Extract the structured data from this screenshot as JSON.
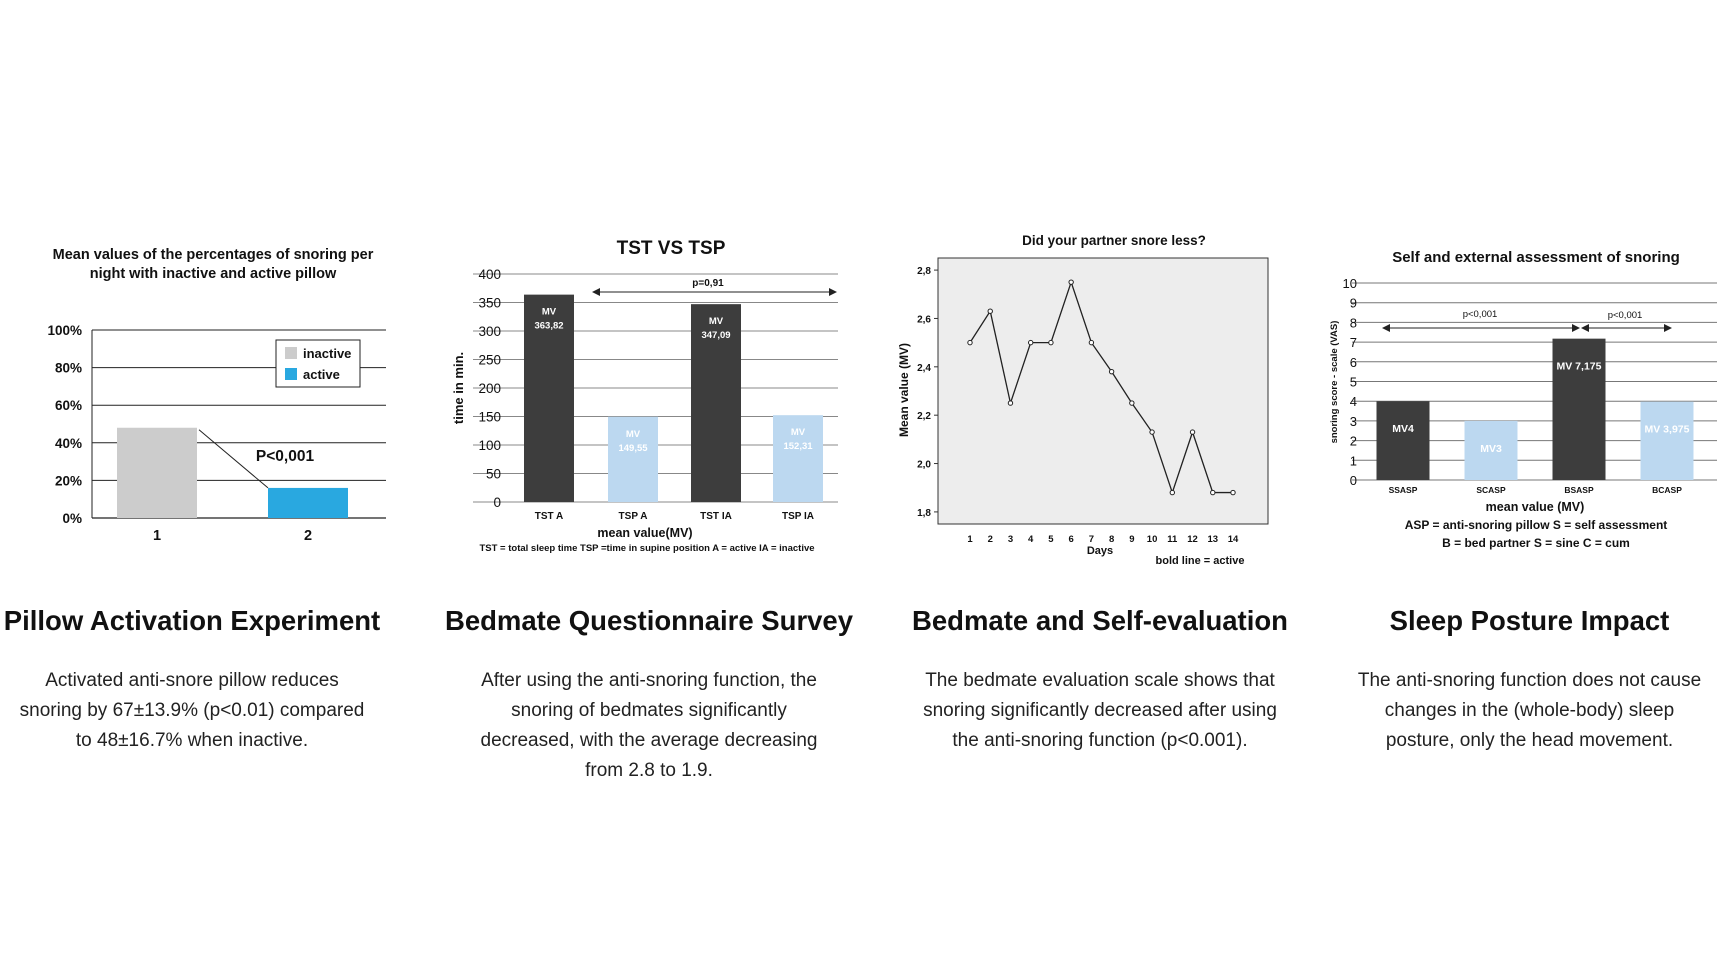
{
  "panels": [
    {
      "heading": "Pillow Activation Experiment",
      "description": [
        "Activated anti-snore pillow reduces",
        "snoring by 67±13.9% (p<0.01) compared",
        "to 48±16.7% when inactive."
      ]
    },
    {
      "heading": "Bedmate Questionnaire Survey",
      "description": [
        "After using the anti-snoring function, the",
        "snoring of bedmates significantly",
        "decreased, with the average decreasing",
        "from 2.8 to 1.9."
      ]
    },
    {
      "heading": "Bedmate and Self-evaluation",
      "description": [
        "The bedmate evaluation scale shows that",
        "snoring significantly decreased after using",
        "the anti-snoring function (p<0.001)."
      ]
    },
    {
      "heading": "Sleep Posture Impact",
      "description": [
        "The anti-snoring function does not cause",
        "changes in the (whole-body) sleep",
        "posture, only the head movement."
      ]
    }
  ],
  "chart_data": [
    {
      "type": "bar",
      "title_lines": [
        "Mean values of the percentages of snoring per",
        "night with inactive and active pillow"
      ],
      "categories": [
        "1",
        "2"
      ],
      "values": [
        48,
        16
      ],
      "bar_colors": [
        "#cccccc",
        "#29a8e0"
      ],
      "yticks": [
        "0%",
        "20%",
        "40%",
        "60%",
        "80%",
        "100%"
      ],
      "ylim": [
        0,
        100
      ],
      "legend": [
        {
          "label": "inactive",
          "color": "#cccccc"
        },
        {
          "label": "active",
          "color": "#29a8e0"
        }
      ],
      "legend_position": "top-right",
      "annotation": "P<0,001",
      "grid": true
    },
    {
      "type": "bar",
      "title": "TST  VS  TSP",
      "ylabel": "time in min.",
      "xlabel": "mean value(MV)",
      "categories": [
        "TST A",
        "TSP A",
        "TST IA",
        "TSP IA"
      ],
      "values": [
        363.82,
        149.55,
        347.09,
        152.31
      ],
      "value_labels": [
        [
          "MV",
          "363,82"
        ],
        [
          "MV",
          "149,55"
        ],
        [
          "MV",
          "347,09"
        ],
        [
          "MV",
          "152,31"
        ]
      ],
      "bar_colors": [
        "#3d3d3d",
        "#bcd8f0",
        "#3d3d3d",
        "#bcd8f0"
      ],
      "label_colors": [
        "#ffffff",
        "#ffffff",
        "#ffffff",
        "#ffffff"
      ],
      "yticks": [
        "0",
        "50",
        "100",
        "150",
        "200",
        "250",
        "300",
        "350",
        "400"
      ],
      "ylim": [
        0,
        400
      ],
      "pvalue": "p=0,91",
      "footnote": "TST = total sleep time  TSP =time in supine position  A = active  IA = inactive",
      "grid": true
    },
    {
      "type": "line",
      "title": "Did your partner snore less?",
      "ylabel": "Mean value (MV)",
      "xlabel": "Days",
      "x": [
        1,
        2,
        3,
        4,
        5,
        6,
        7,
        8,
        9,
        10,
        11,
        12,
        13,
        14
      ],
      "y": [
        2.5,
        2.63,
        2.25,
        2.5,
        2.5,
        2.75,
        2.5,
        2.38,
        2.25,
        2.13,
        1.88,
        2.13,
        1.88,
        1.88
      ],
      "yticks": [
        "1,8",
        "2,0",
        "2,2",
        "2,4",
        "2,6",
        "2,8"
      ],
      "ylim": [
        1.75,
        2.85
      ],
      "xticks": [
        "1",
        "2",
        "3",
        "4",
        "5",
        "6",
        "7",
        "8",
        "9",
        "10",
        "11",
        "12",
        "13",
        "14"
      ],
      "note": "bold line = active",
      "background": "#ededed"
    },
    {
      "type": "bar",
      "title": "Self and external assessment of snoring",
      "ylabel": "snoring score - scale (VAS)",
      "xlabel": "mean value (MV)",
      "categories": [
        "SSASP",
        "SCASP",
        "BSASP",
        "BCASP"
      ],
      "values": [
        4,
        3,
        7.175,
        3.975
      ],
      "value_labels": [
        "MV4",
        "MV3",
        "MV 7,175",
        "MV 3,975"
      ],
      "bar_colors": [
        "#3d3d3d",
        "#bcd8f0",
        "#3d3d3d",
        "#bcd8f0"
      ],
      "yticks": [
        "0",
        "1",
        "2",
        "3",
        "4",
        "5",
        "6",
        "7",
        "8",
        "9",
        "10"
      ],
      "ylim": [
        0,
        10
      ],
      "pvalues": [
        "p<0,001",
        "p<0,001"
      ],
      "footnotes": [
        "ASP = anti-snoring pillow    S = self assessment",
        "B = bed partner     S = sine     C = cum"
      ],
      "grid": true
    }
  ]
}
